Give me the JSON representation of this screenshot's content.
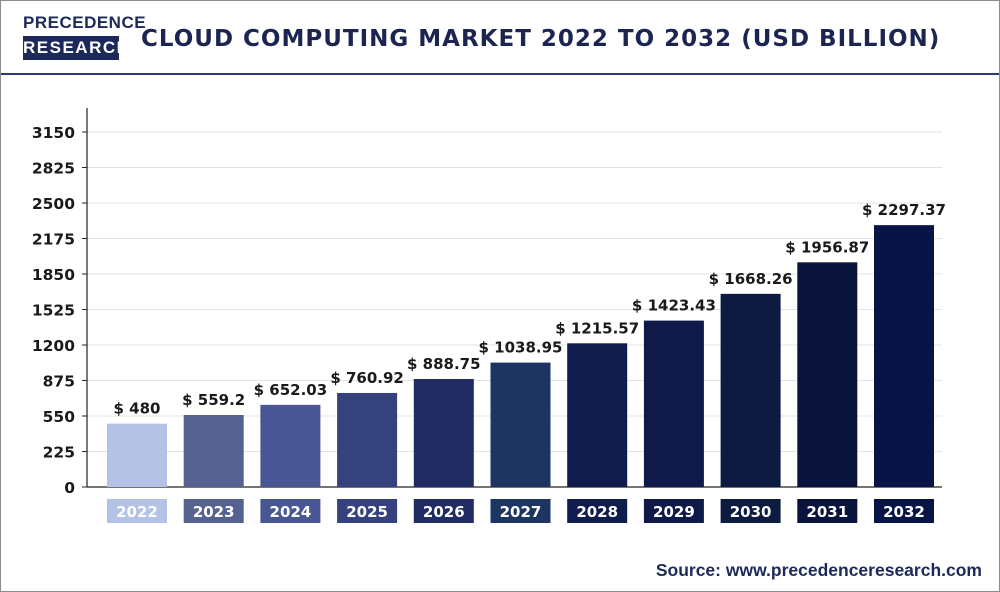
{
  "header": {
    "logo_top": "PRECEDENCE",
    "logo_bottom": "RESEARCH",
    "title": "CLOUD COMPUTING MARKET 2022 TO 2032 (USD BILLION)"
  },
  "footer": {
    "source": "Source: www.precedenceresearch.com"
  },
  "colors": {
    "brand_navy": "#1c2a5a",
    "bars": [
      "#b4c2e6",
      "#55618f",
      "#485693",
      "#35427d",
      "#212c63",
      "#1d3561",
      "#101c4c",
      "#0f1a48",
      "#0d1b41",
      "#0a133b",
      "#071445"
    ]
  },
  "chart_data": {
    "type": "bar",
    "title": "CLOUD COMPUTING MARKET 2022 TO 2032 (USD BILLION)",
    "categories": [
      "2022",
      "2023",
      "2024",
      "2025",
      "2026",
      "2027",
      "2028",
      "2029",
      "2030",
      "2031",
      "2032"
    ],
    "values": [
      480,
      559.2,
      652.03,
      760.92,
      888.75,
      1038.95,
      1215.57,
      1423.43,
      1668.26,
      1956.87,
      2297.37
    ],
    "value_labels": [
      "$ 480",
      "$ 559.2",
      "$ 652.03",
      "$ 760.92",
      "$ 888.75",
      "$ 1038.95",
      "$ 1215.57",
      "$ 1423.43",
      "$ 1668.26",
      "$ 1956.87",
      "$ 2297.37"
    ],
    "yticks": [
      0,
      225,
      550,
      875,
      1200,
      1525,
      1850,
      2175,
      2500,
      2825,
      3150
    ],
    "ylim": [
      0,
      3150
    ],
    "xlabel": "",
    "ylabel": "",
    "grid": true,
    "legend": "none"
  }
}
